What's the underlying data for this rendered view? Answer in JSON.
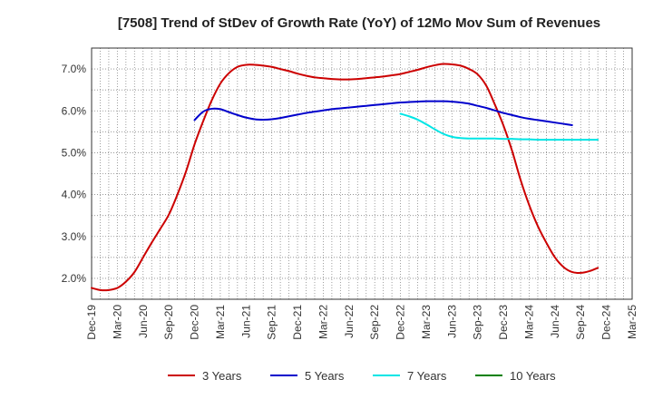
{
  "chart_data": {
    "type": "line",
    "title": "[7508]  Trend of StDev of Growth Rate (YoY) of 12Mo Mov Sum of Revenues",
    "xlabel": "",
    "ylabel": "",
    "x_start": "Dec-19",
    "x_step_months": 1,
    "xlim": [
      0,
      63
    ],
    "ylim": [
      1.5,
      7.5
    ],
    "y_ticks": [
      2.0,
      3.0,
      4.0,
      5.0,
      6.0,
      7.0
    ],
    "y_tick_labels": [
      "2.0%",
      "3.0%",
      "4.0%",
      "5.0%",
      "6.0%",
      "7.0%"
    ],
    "x_ticks": [
      0,
      3,
      6,
      9,
      12,
      15,
      18,
      21,
      24,
      27,
      30,
      33,
      36,
      39,
      42,
      45,
      48,
      51,
      54,
      57,
      60,
      63
    ],
    "x_tick_labels": [
      "Dec-19",
      "Mar-20",
      "Jun-20",
      "Sep-20",
      "Dec-20",
      "Mar-21",
      "Jun-21",
      "Sep-21",
      "Dec-21",
      "Mar-22",
      "Jun-22",
      "Sep-22",
      "Dec-22",
      "Mar-23",
      "Jun-23",
      "Sep-23",
      "Dec-23",
      "Mar-24",
      "Jun-24",
      "Sep-24",
      "Dec-24",
      "Mar-25"
    ],
    "grid": true,
    "legend_position": "bottom",
    "series": [
      {
        "name": "3 Years",
        "color": "#cc0000",
        "start_index": 0,
        "values": [
          1.77,
          1.72,
          1.72,
          1.77,
          1.92,
          2.15,
          2.5,
          2.85,
          3.18,
          3.52,
          4.0,
          4.55,
          5.2,
          5.75,
          6.25,
          6.65,
          6.9,
          7.05,
          7.1,
          7.1,
          7.08,
          7.05,
          7.0,
          6.95,
          6.89,
          6.84,
          6.8,
          6.78,
          6.76,
          6.75,
          6.75,
          6.76,
          6.78,
          6.8,
          6.82,
          6.85,
          6.88,
          6.93,
          6.98,
          7.04,
          7.09,
          7.12,
          7.11,
          7.08,
          7.0,
          6.87,
          6.6,
          6.15,
          5.65,
          5.05,
          4.35,
          3.75,
          3.25,
          2.85,
          2.5,
          2.27,
          2.15,
          2.13,
          2.17,
          2.25
        ]
      },
      {
        "name": "5 Years",
        "color": "#0000cc",
        "start_index": 12,
        "values": [
          5.78,
          5.98,
          6.05,
          6.04,
          5.97,
          5.9,
          5.84,
          5.8,
          5.79,
          5.8,
          5.83,
          5.87,
          5.91,
          5.95,
          5.98,
          6.01,
          6.04,
          6.06,
          6.08,
          6.1,
          6.12,
          6.14,
          6.16,
          6.18,
          6.2,
          6.21,
          6.22,
          6.23,
          6.23,
          6.23,
          6.22,
          6.2,
          6.17,
          6.12,
          6.07,
          6.01,
          5.95,
          5.9,
          5.85,
          5.81,
          5.78,
          5.75,
          5.72,
          5.69,
          5.66
        ]
      },
      {
        "name": "7 Years",
        "color": "#00e5e5",
        "start_index": 36,
        "values": [
          5.93,
          5.87,
          5.79,
          5.68,
          5.56,
          5.45,
          5.38,
          5.35,
          5.34,
          5.34,
          5.34,
          5.34,
          5.33,
          5.33,
          5.32,
          5.32,
          5.31,
          5.31,
          5.31,
          5.31,
          5.31,
          5.31,
          5.31,
          5.31
        ]
      },
      {
        "name": "10 Years",
        "color": "#008000",
        "start_index": 0,
        "values": []
      }
    ]
  }
}
